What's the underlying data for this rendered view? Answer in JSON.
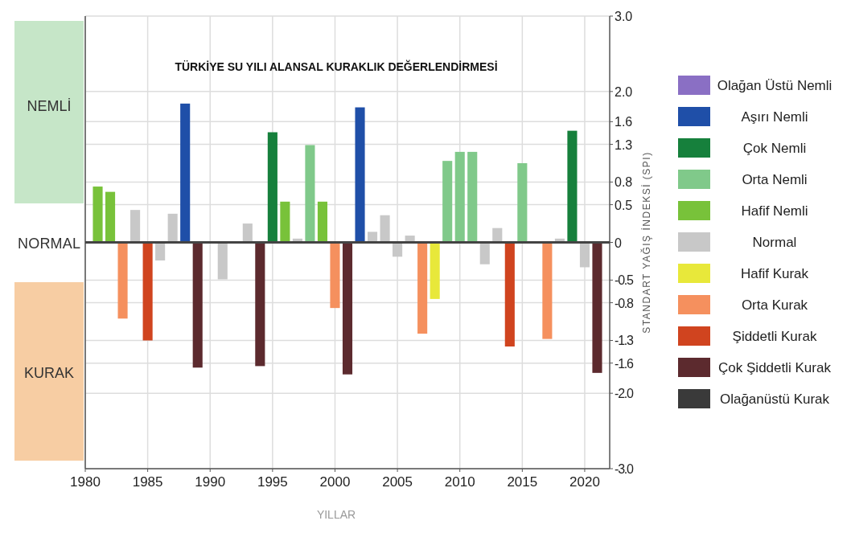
{
  "chart_data": {
    "type": "bar",
    "title": "TÜRKİYE SU YILI ALANSAL KURAKLIK DEĞERLENDİRMESİ",
    "xlabel": "YILLAR",
    "ylabel": "STANDART YAĞIŞ İNDEKSİ (SPI)",
    "xlim": [
      1980,
      2022
    ],
    "xticks": [
      1980,
      1985,
      1990,
      1995,
      2000,
      2005,
      2010,
      2015,
      2020
    ],
    "ylim": [
      -3,
      3
    ],
    "yticks": [
      {
        "value": 3,
        "label": "3.0"
      },
      {
        "value": 2,
        "label": "2.0"
      },
      1.6,
      1.3,
      0.8,
      0.5,
      0,
      -0.5,
      -0.8,
      -1.3,
      -1.6,
      {
        "value": -2,
        "label": "-2.0"
      },
      {
        "value": -3,
        "label": "-3.0"
      }
    ],
    "grid": true,
    "legend": "right",
    "series": [
      {
        "name": "Olağan Üstü Nemli",
        "color": "#8a6fc4"
      },
      {
        "name": "Aşırı Nemli",
        "color": "#1f4fa8",
        "x": [
          1988,
          2002
        ],
        "values": [
          1.84,
          1.79
        ]
      },
      {
        "name": "Çok Nemli",
        "color": "#16803c",
        "x": [
          1995,
          2019
        ],
        "values": [
          1.46,
          1.48
        ]
      },
      {
        "name": "Orta Nemli",
        "color": "#80c98a",
        "x": [
          1998,
          2009,
          2010,
          2011,
          2015
        ],
        "values": [
          1.29,
          1.08,
          1.2,
          1.2,
          1.05
        ]
      },
      {
        "name": "Hafif Nemli",
        "color": "#78c23a",
        "x": [
          1981,
          1982,
          1996,
          1999
        ],
        "values": [
          0.74,
          0.67,
          0.54,
          0.54
        ]
      },
      {
        "name": "Normal",
        "color": "#c8c8c8",
        "x": [
          1984,
          1986,
          1987,
          1991,
          1993,
          1997,
          2003,
          2004,
          2005,
          2006,
          2012,
          2013,
          2018,
          2020
        ],
        "values": [
          0.43,
          -0.24,
          0.38,
          -0.49,
          0.25,
          0.05,
          0.14,
          0.36,
          -0.19,
          0.09,
          -0.29,
          0.19,
          0.05,
          -0.33
        ]
      },
      {
        "name": "Hafif Kurak",
        "color": "#e8e83a",
        "x": [
          2008
        ],
        "values": [
          -0.75
        ]
      },
      {
        "name": "Orta Kurak",
        "color": "#f5905e",
        "x": [
          1983,
          2000,
          2007,
          2017
        ],
        "values": [
          -1.01,
          -0.87,
          -1.21,
          -1.28
        ]
      },
      {
        "name": "Şiddetli Kurak",
        "color": "#d0441f",
        "x": [
          1985,
          2014
        ],
        "values": [
          -1.3,
          -1.38
        ]
      },
      {
        "name": "Çok Şiddetli Kurak",
        "color": "#5c2a2e",
        "x": [
          1989,
          1994,
          2001,
          2021
        ],
        "values": [
          -1.66,
          -1.64,
          -1.75,
          -1.73
        ]
      },
      {
        "name": "Olağanüstü Kurak",
        "color": "#3a3a3a"
      }
    ],
    "annotations": [
      "NEMLİ",
      "NORMAL",
      "KURAK"
    ]
  }
}
